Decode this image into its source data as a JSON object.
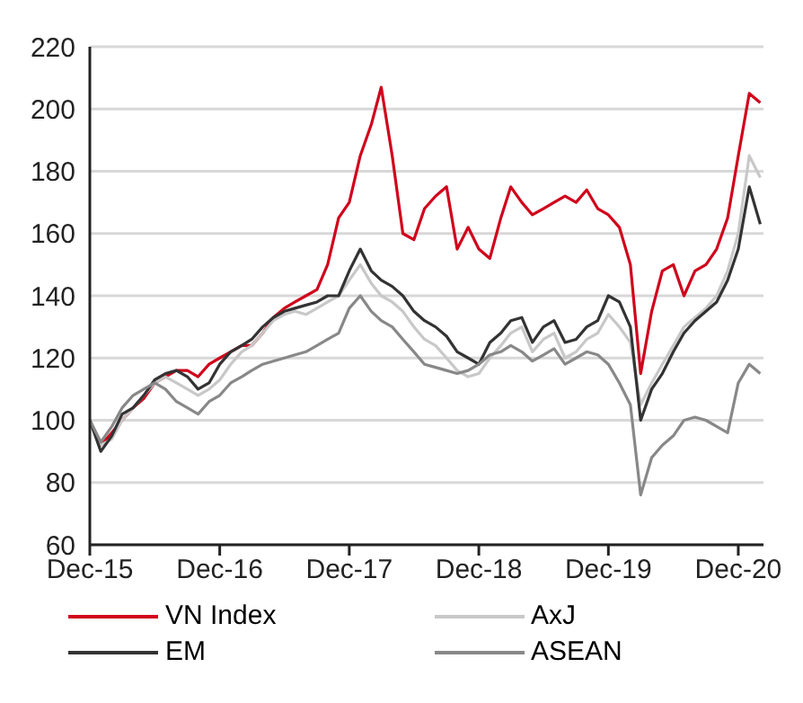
{
  "chart_data": {
    "type": "line",
    "x": [
      "2015-12",
      "2016-01",
      "2016-02",
      "2016-03",
      "2016-04",
      "2016-05",
      "2016-06",
      "2016-07",
      "2016-08",
      "2016-09",
      "2016-10",
      "2016-11",
      "2016-12",
      "2017-01",
      "2017-02",
      "2017-03",
      "2017-04",
      "2017-05",
      "2017-06",
      "2017-07",
      "2017-08",
      "2017-09",
      "2017-10",
      "2017-11",
      "2017-12",
      "2018-01",
      "2018-02",
      "2018-03",
      "2018-04",
      "2018-05",
      "2018-06",
      "2018-07",
      "2018-08",
      "2018-09",
      "2018-10",
      "2018-11",
      "2018-12",
      "2019-01",
      "2019-02",
      "2019-03",
      "2019-04",
      "2019-05",
      "2019-06",
      "2019-07",
      "2019-08",
      "2019-09",
      "2019-10",
      "2019-11",
      "2019-12",
      "2020-01",
      "2020-02",
      "2020-03",
      "2020-04",
      "2020-05",
      "2020-06",
      "2020-07",
      "2020-08",
      "2020-09",
      "2020-10",
      "2020-11",
      "2020-12",
      "2021-01",
      "2021-02"
    ],
    "series": [
      {
        "name": "VN Index",
        "color": "#d0021b",
        "values": [
          100,
          92,
          96,
          100,
          104,
          107,
          112,
          114,
          116,
          116,
          114,
          118,
          120,
          122,
          124,
          124,
          128,
          133,
          136,
          138,
          140,
          142,
          150,
          165,
          170,
          185,
          195,
          207,
          185,
          160,
          158,
          168,
          172,
          175,
          155,
          162,
          155,
          152,
          165,
          175,
          170,
          166,
          168,
          170,
          172,
          170,
          174,
          168,
          166,
          162,
          150,
          115,
          135,
          148,
          150,
          140,
          148,
          150,
          155,
          165,
          185,
          205,
          202
        ]
      },
      {
        "name": "AxJ",
        "color": "#c8c8c8",
        "values": [
          100,
          92,
          94,
          100,
          104,
          108,
          112,
          114,
          112,
          110,
          108,
          110,
          113,
          118,
          122,
          124,
          128,
          132,
          134,
          135,
          134,
          136,
          138,
          140,
          145,
          150,
          144,
          140,
          138,
          135,
          130,
          126,
          124,
          120,
          116,
          114,
          115,
          120,
          124,
          128,
          130,
          122,
          126,
          128,
          120,
          122,
          126,
          128,
          134,
          130,
          125,
          105,
          112,
          118,
          124,
          130,
          133,
          136,
          140,
          148,
          160,
          185,
          178
        ]
      },
      {
        "name": "EM",
        "color": "#333333",
        "values": [
          100,
          90,
          95,
          102,
          104,
          108,
          113,
          115,
          116,
          114,
          110,
          112,
          118,
          122,
          124,
          126,
          130,
          133,
          135,
          136,
          137,
          138,
          140,
          140,
          148,
          155,
          148,
          145,
          143,
          140,
          135,
          132,
          130,
          127,
          122,
          120,
          118,
          125,
          128,
          132,
          133,
          125,
          130,
          132,
          125,
          126,
          130,
          132,
          140,
          138,
          130,
          100,
          110,
          115,
          122,
          128,
          132,
          135,
          138,
          145,
          155,
          175,
          163
        ]
      },
      {
        "name": "ASEAN",
        "color": "#888888",
        "values": [
          100,
          93,
          98,
          104,
          108,
          110,
          112,
          110,
          106,
          104,
          102,
          106,
          108,
          112,
          114,
          116,
          118,
          119,
          120,
          121,
          122,
          124,
          126,
          128,
          136,
          140,
          135,
          132,
          130,
          126,
          122,
          118,
          117,
          116,
          115,
          116,
          118,
          121,
          122,
          124,
          122,
          119,
          121,
          123,
          118,
          120,
          122,
          121,
          118,
          112,
          105,
          76,
          88,
          92,
          95,
          100,
          101,
          100,
          98,
          96,
          112,
          118,
          115
        ]
      }
    ],
    "xlim": [
      "2015-12-01",
      "2021-02-10"
    ],
    "xticks": [
      {
        "value": "2015-12",
        "label": "Dec-15"
      },
      {
        "value": "2016-12",
        "label": "Dec-16"
      },
      {
        "value": "2017-12",
        "label": "Dec-17"
      },
      {
        "value": "2018-12",
        "label": "Dec-18"
      },
      {
        "value": "2019-12",
        "label": "Dec-19"
      },
      {
        "value": "2020-12",
        "label": "Dec-20"
      }
    ],
    "ylim": [
      60,
      220
    ],
    "yticks": [
      60,
      80,
      100,
      120,
      140,
      160,
      180,
      200,
      220
    ],
    "grid": "y",
    "legend": "bottom",
    "marker": "none",
    "line_style": "solid"
  }
}
